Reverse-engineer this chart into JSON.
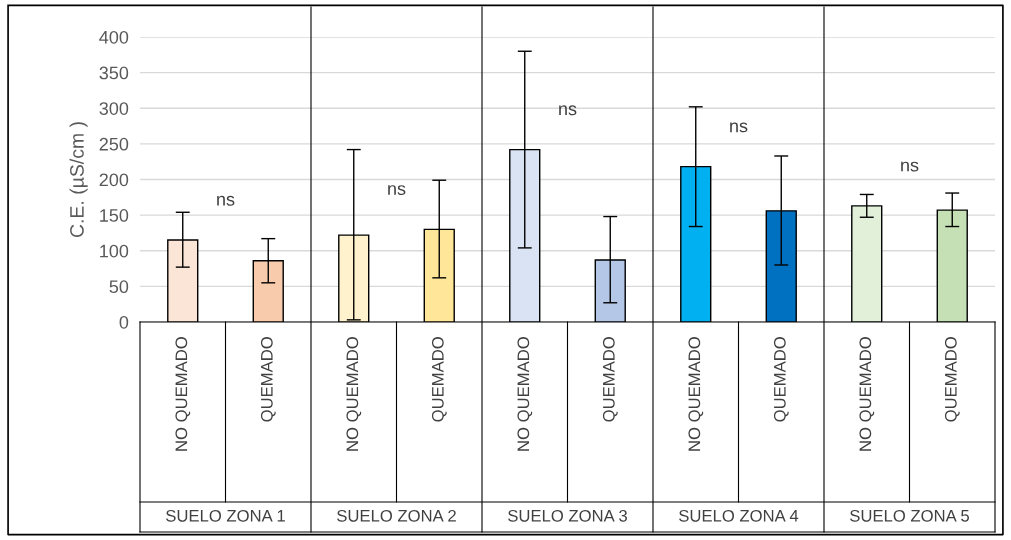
{
  "chart_data": {
    "type": "bar",
    "ylabel": "C.E. (µS/cm )",
    "categories": [
      "NO QUEMADO",
      "QUEMADO",
      "NO QUEMADO",
      "QUEMADO",
      "NO QUEMADO",
      "QUEMADO",
      "NO QUEMADO",
      "QUEMADO",
      "NO QUEMADO",
      "QUEMADO"
    ],
    "values": [
      115,
      86,
      122,
      130,
      242,
      87,
      218,
      156,
      163,
      157
    ],
    "colors": [
      "#fbe5d6",
      "#f8cbad",
      "#fff2cc",
      "#ffe699",
      "#dae3f3",
      "#b4c7e7",
      "#00b0f0",
      "#0070c0",
      "#e2f0d9",
      "#c5e0b4"
    ],
    "errors": [
      [
        77,
        154
      ],
      [
        55,
        117
      ],
      [
        3,
        242
      ],
      [
        62,
        199
      ],
      [
        104,
        380
      ],
      [
        27,
        148
      ],
      [
        134,
        302
      ],
      [
        80,
        233
      ],
      [
        147,
        179
      ],
      [
        134,
        181
      ]
    ],
    "ylim": [
      0,
      400
    ],
    "yticks": [
      0,
      50,
      100,
      150,
      200,
      250,
      300,
      350,
      400
    ],
    "grid": "y",
    "annotations": [
      "ns",
      "ns",
      "ns",
      "ns",
      "ns",
      "SUELO ZONA 1",
      "SUELO ZONA 2",
      "SUELO ZONA 3",
      "SUELO ZONA 4",
      "SUELO ZONA 5"
    ]
  }
}
